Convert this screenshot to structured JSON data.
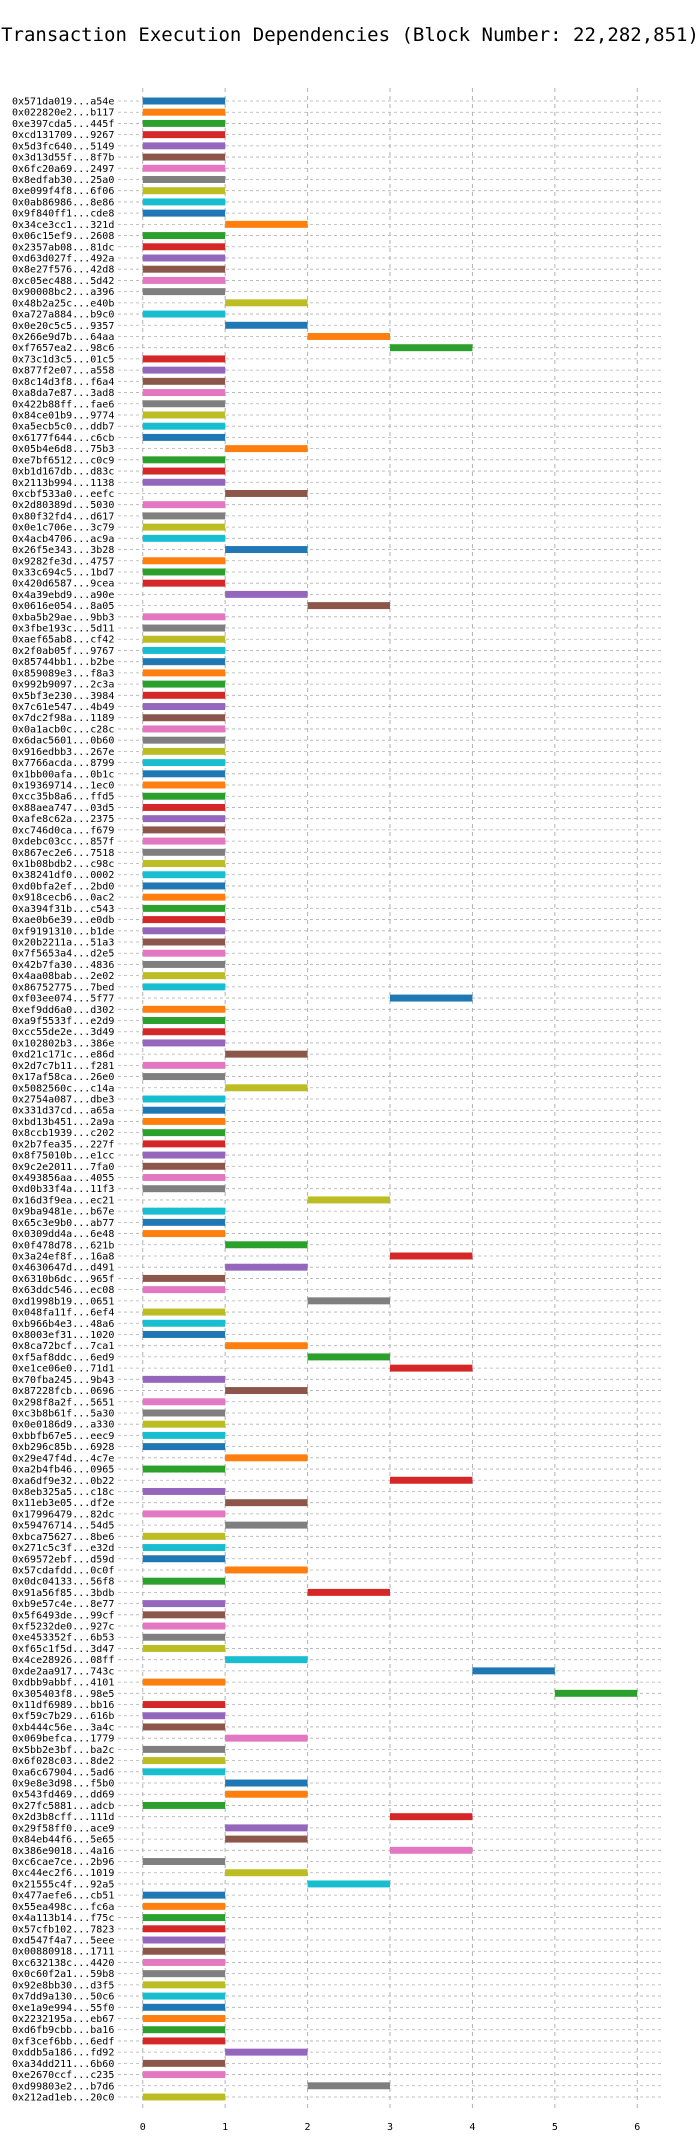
{
  "chart_data": {
    "type": "bar",
    "orientation": "horizontal",
    "title": "Transaction Execution Dependencies (Block Number: 22,282,851)",
    "xlabel": "",
    "ylabel": "",
    "xlim": [
      -0.3,
      6.3
    ],
    "xticks": [
      0,
      1,
      2,
      3,
      4,
      5,
      6
    ],
    "grid": true,
    "colors": [
      "#1f77b4",
      "#ff7f0e",
      "#2ca02c",
      "#d62728",
      "#9467bd",
      "#8c564b",
      "#e377c2",
      "#7f7f7f",
      "#bcbd22",
      "#17becf"
    ],
    "categories": [
      "0x571da019...a54e",
      "0x022820e2...b117",
      "0xe397cda5...445f",
      "0xcd131709...9267",
      "0x5d3fc640...5149",
      "0x3d13d55f...8f7b",
      "0x6fc20a69...2497",
      "0x8edfab30...25a0",
      "0xe099f4f8...6f06",
      "0x0ab86986...8e86",
      "0x9f840ff1...cde8",
      "0x34ce3cc1...321d",
      "0x06c15ef9...2608",
      "0x2357ab08...81dc",
      "0xd63d027f...492a",
      "0x8e27f576...42d8",
      "0xc05ec488...5d42",
      "0x90008bc2...a396",
      "0x48b2a25c...e40b",
      "0xa727a884...b9c0",
      "0x0e20c5c5...9357",
      "0x266e9d7b...64aa",
      "0xf7657ea2...98c6",
      "0x73c1d3c5...01c5",
      "0x877f2e07...a558",
      "0x8c14d3f8...f6a4",
      "0xa8da7e87...3ad8",
      "0x422b88ff...fae6",
      "0x84ce01b9...9774",
      "0xa5ecb5c0...ddb7",
      "0x6177f644...c6cb",
      "0x05b4e6d8...75b3",
      "0xe7bf6512...c0c9",
      "0xb1d167db...d83c",
      "0x2113b994...1138",
      "0xcbf533a0...eefc",
      "0x2d80389d...5030",
      "0x80f32fd4...d617",
      "0x0e1c706e...3c79",
      "0x4acb4706...ac9a",
      "0x26f5e343...3b28",
      "0x9282fe3d...4757",
      "0x33c694c5...1bd7",
      "0x420d6587...9cea",
      "0x4a39ebd9...a90e",
      "0x0616e054...8a05",
      "0xba5b29ae...9bb3",
      "0x3fbe193c...5d11",
      "0xaef65ab8...cf42",
      "0x2f0ab05f...9767",
      "0x85744bb1...b2be",
      "0x859089e3...f8a3",
      "0x992b9097...2c3a",
      "0x5bf3e230...3984",
      "0x7c61e547...4b49",
      "0x7dc2f98a...1189",
      "0x0a1acb0c...c28c",
      "0x6dac5601...0b60",
      "0x916edbb3...267e",
      "0x7766acda...8799",
      "0x1bb00afa...0b1c",
      "0x19369714...1ec0",
      "0xcc35b8a6...ffd5",
      "0x88aea747...03d5",
      "0xafe8c62a...2375",
      "0xc746d0ca...f679",
      "0xdebc03cc...857f",
      "0x867ec2e6...7518",
      "0x1b08bdb2...c98c",
      "0x38241df0...0002",
      "0xd0bfa2ef...2bd0",
      "0x918cecb6...0ac2",
      "0xa394f31b...c543",
      "0xae0b6e39...e0db",
      "0xf9191310...b1de",
      "0x20b2211a...51a3",
      "0x7f5653a4...d2e5",
      "0x42b7fa30...4836",
      "0x4aa08bab...2e02",
      "0x86752775...7bed",
      "0xf03ee074...5f77",
      "0xef9dd6a0...d302",
      "0xa9f5533f...e2d9",
      "0xcc55de2e...3d49",
      "0x102802b3...386e",
      "0xd21c171c...e86d",
      "0x2d7c7b11...f281",
      "0x17af58ca...26e0",
      "0x5082560c...c14a",
      "0x2754a087...dbe3",
      "0x331d37cd...a65a",
      "0xbd13b451...2a9a",
      "0x8ccb1939...c202",
      "0x2b7fea35...227f",
      "0x8f75010b...e1cc",
      "0x9c2e2011...7fa0",
      "0x493856aa...4055",
      "0xd0b33f4a...11f3",
      "0x16d3f9ea...ec21",
      "0x9ba9481e...b67e",
      "0x65c3e9b0...ab77",
      "0x0309dd4a...6e48",
      "0x0f478d78...621b",
      "0x3a24ef8f...16a8",
      "0x4630647d...d491",
      "0x6310b6dc...965f",
      "0x63ddc546...ec08",
      "0xd1998b19...0651",
      "0x048fa11f...6ef4",
      "0xb966b4e3...48a6",
      "0x8003ef31...1020",
      "0x8ca72bcf...7ca1",
      "0xf5af8ddc...6ed9",
      "0xe1ce06e0...71d1",
      "0x70fba245...9b43",
      "0x87228fcb...0696",
      "0x298f8a2f...5651",
      "0xc3b8b61f...5a30",
      "0x0e0186d9...a330",
      "0xbbfb67e5...eec9",
      "0xb296c85b...6928",
      "0x29e47f4d...4c7e",
      "0xa2b4fb46...0965",
      "0xa6df9e32...0b22",
      "0x8eb325a5...c18c",
      "0x11eb3e05...df2e",
      "0x17996479...82dc",
      "0x59476714...54d5",
      "0xbca75627...8be6",
      "0x271c5c3f...e32d",
      "0x69572ebf...d59d",
      "0x57cdafdd...0c0f",
      "0x0dc04133...56f8",
      "0x91a56f85...3bdb",
      "0xb9e57c4e...8e77",
      "0x5f6493de...99cf",
      "0xf5232de0...927c",
      "0xe453352f...6b53",
      "0xf65c1f5d...3d47",
      "0x4ce28926...08ff",
      "0xde2aa917...743c",
      "0xdbb9abbf...4101",
      "0x305403f8...98e5",
      "0x11df6989...bb16",
      "0xf59c7b29...616b",
      "0xb444c56e...3a4c",
      "0x069befca...1779",
      "0x5bb2e3bf...ba2c",
      "0x6f028c03...8de2",
      "0xa6c67904...5ad6",
      "0x9e8e3d98...f5b0",
      "0x543fd469...dd69",
      "0x27fc5881...adcb",
      "0x2d3b8cff...111d",
      "0x29f58ff0...ace9",
      "0x84eb44f6...5e65",
      "0x386e9018...4a16",
      "0xc6cae7ce...2b96",
      "0xc44ec2f6...1019",
      "0x21555c4f...92a5",
      "0x477aefe6...cb51",
      "0x55ea498c...fc6a",
      "0x4a113b14...f75c",
      "0x57cfb102...7823",
      "0xd547f4a7...5eee",
      "0x00880918...1711",
      "0xc632138c...4420",
      "0x0c60f2a1...59b8",
      "0x92e8bb30...d3f5",
      "0x7dd9a130...50c6",
      "0xe1a9e994...55f0",
      "0x2232195a...eb67",
      "0xd6fb9cbb...ba16",
      "0xf3cef6bb...6edf",
      "0xddb5a186...fd92",
      "0xa34dd211...6b60",
      "0xe2670ccf...c235",
      "0xd99803e2...b7d6",
      "0x212ad1eb...20c0"
    ],
    "starts": [
      0,
      0,
      0,
      0,
      0,
      0,
      0,
      0,
      0,
      0,
      0,
      1,
      0,
      0,
      0,
      0,
      0,
      0,
      1,
      0,
      1,
      2,
      3,
      0,
      0,
      0,
      0,
      0,
      0,
      0,
      0,
      1,
      0,
      0,
      0,
      1,
      0,
      0,
      0,
      0,
      1,
      0,
      0,
      0,
      1,
      2,
      0,
      0,
      0,
      0,
      0,
      0,
      0,
      0,
      0,
      0,
      0,
      0,
      0,
      0,
      0,
      0,
      0,
      0,
      0,
      0,
      0,
      0,
      0,
      0,
      0,
      0,
      0,
      0,
      0,
      0,
      0,
      0,
      0,
      0,
      3,
      0,
      0,
      0,
      0,
      1,
      0,
      0,
      1,
      0,
      0,
      0,
      0,
      0,
      0,
      0,
      0,
      0,
      2,
      0,
      0,
      0,
      1,
      3,
      1,
      0,
      0,
      2,
      0,
      0,
      0,
      1,
      2,
      3,
      0,
      1,
      0,
      0,
      0,
      0,
      0,
      1,
      0,
      3,
      0,
      1,
      0,
      1,
      0,
      0,
      0,
      1,
      0,
      2,
      0,
      0,
      0,
      0,
      0,
      1,
      4,
      0,
      5,
      0,
      0,
      0,
      1,
      0,
      0,
      0,
      1,
      1,
      0,
      3,
      1,
      1,
      3,
      0,
      1,
      2,
      0,
      0,
      0,
      0,
      0,
      0,
      0,
      0,
      0,
      0,
      0,
      0,
      0,
      0,
      1,
      0,
      0,
      2,
      0
    ],
    "ends": [
      1,
      1,
      1,
      1,
      1,
      1,
      1,
      1,
      1,
      1,
      1,
      2,
      1,
      1,
      1,
      1,
      1,
      1,
      2,
      1,
      2,
      3,
      4,
      1,
      1,
      1,
      1,
      1,
      1,
      1,
      1,
      2,
      1,
      1,
      1,
      2,
      1,
      1,
      1,
      1,
      2,
      1,
      1,
      1,
      2,
      3,
      1,
      1,
      1,
      1,
      1,
      1,
      1,
      1,
      1,
      1,
      1,
      1,
      1,
      1,
      1,
      1,
      1,
      1,
      1,
      1,
      1,
      1,
      1,
      1,
      1,
      1,
      1,
      1,
      1,
      1,
      1,
      1,
      1,
      1,
      4,
      1,
      1,
      1,
      1,
      2,
      1,
      1,
      2,
      1,
      1,
      1,
      1,
      1,
      1,
      1,
      1,
      1,
      3,
      1,
      1,
      1,
      2,
      4,
      2,
      1,
      1,
      3,
      1,
      1,
      1,
      2,
      3,
      4,
      1,
      2,
      1,
      1,
      1,
      1,
      1,
      2,
      1,
      4,
      1,
      2,
      1,
      2,
      1,
      1,
      1,
      2,
      1,
      3,
      1,
      1,
      1,
      1,
      1,
      2,
      5,
      1,
      6,
      1,
      1,
      1,
      2,
      1,
      1,
      1,
      2,
      2,
      1,
      4,
      2,
      2,
      4,
      1,
      2,
      3,
      1,
      1,
      1,
      1,
      1,
      1,
      1,
      1,
      1,
      1,
      1,
      1,
      1,
      1,
      2,
      1,
      1,
      3,
      1
    ]
  }
}
